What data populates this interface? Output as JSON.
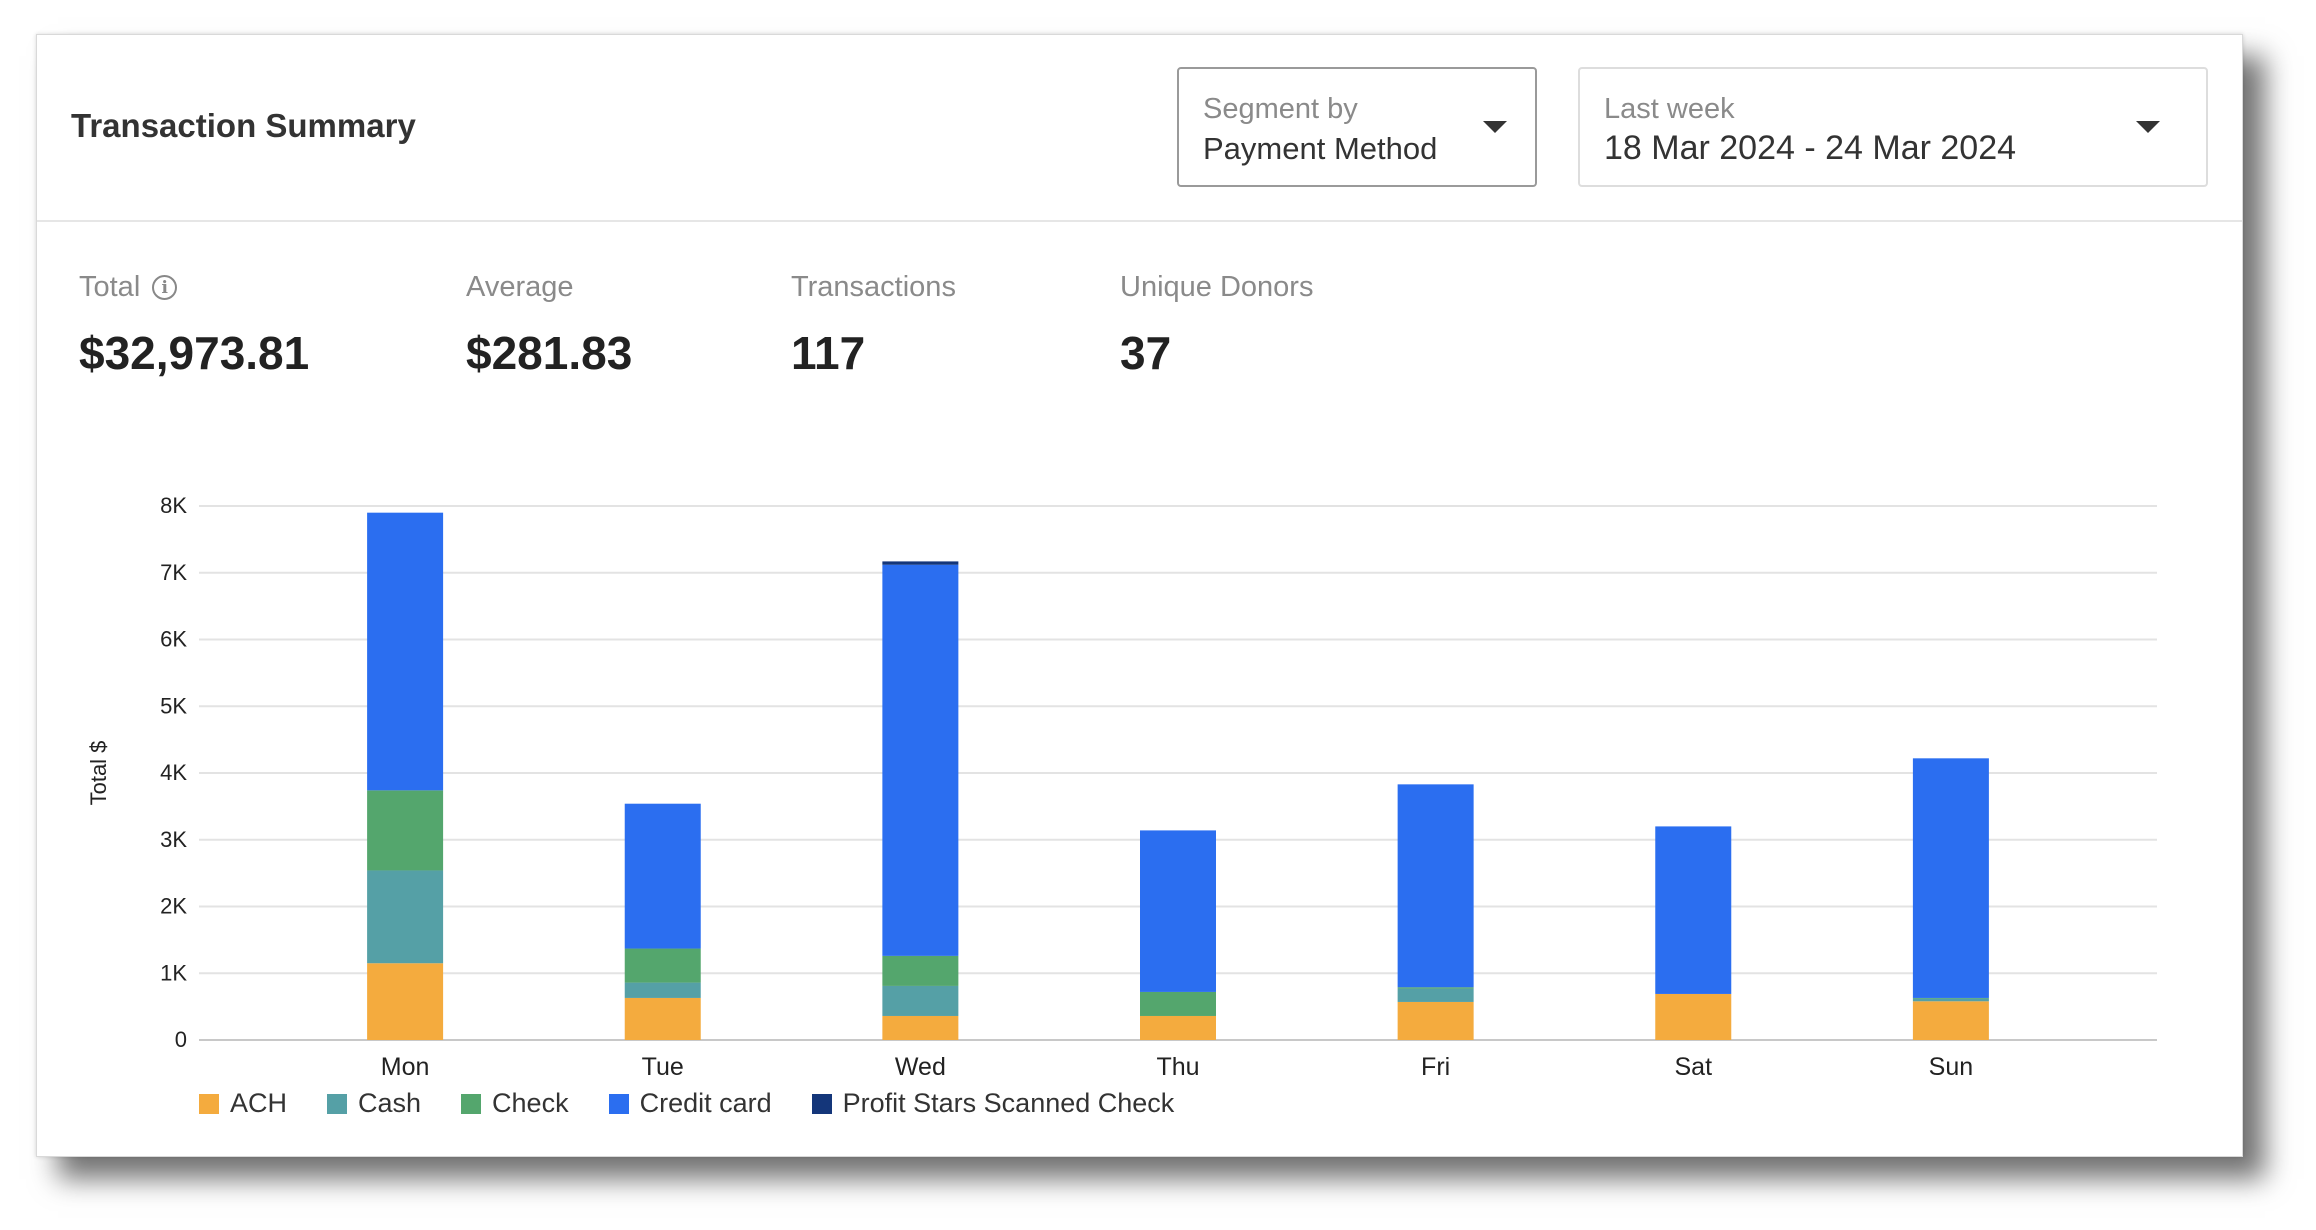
{
  "card": {
    "title": "Transaction Summary",
    "segment": {
      "label": "Segment by",
      "value": "Payment Method"
    },
    "date_range": {
      "label": "Last week",
      "value": "18 Mar 2024 - 24 Mar 2024"
    }
  },
  "metrics": [
    {
      "label": "Total",
      "value": "$32,973.81",
      "has_info": true
    },
    {
      "label": "Average",
      "value": "$281.83"
    },
    {
      "label": "Transactions",
      "value": "117"
    },
    {
      "label": "Unique Donors",
      "value": "37"
    }
  ],
  "chart_data": {
    "type": "bar",
    "stacked": true,
    "ylabel": "Total $",
    "xlabel": "",
    "ylim": [
      0,
      8000
    ],
    "yticks": [
      0,
      1000,
      2000,
      3000,
      4000,
      5000,
      6000,
      7000,
      8000
    ],
    "ytick_labels": [
      "0",
      "1K",
      "2K",
      "3K",
      "4K",
      "5K",
      "6K",
      "7K",
      "8K"
    ],
    "grid": true,
    "legend_position": "bottom-left",
    "categories": [
      "Mon",
      "Tue",
      "Wed",
      "Thu",
      "Fri",
      "Sat",
      "Sun"
    ],
    "series": [
      {
        "name": "ACH",
        "color": "#f4ab3e",
        "values": [
          1150,
          630,
          360,
          360,
          570,
          690,
          580
        ]
      },
      {
        "name": "Cash",
        "color": "#55a0a6",
        "values": [
          1390,
          230,
          450,
          0,
          200,
          0,
          40
        ]
      },
      {
        "name": "Check",
        "color": "#54a66d",
        "values": [
          1200,
          510,
          450,
          360,
          20,
          0,
          10
        ]
      },
      {
        "name": "Credit card",
        "color": "#2b6ef0",
        "values": [
          4160,
          2170,
          5860,
          2420,
          3040,
          2510,
          3590
        ]
      },
      {
        "name": "Profit Stars Scanned Check",
        "color": "#14367a",
        "values": [
          0,
          0,
          50,
          0,
          0,
          0,
          0
        ]
      }
    ]
  }
}
